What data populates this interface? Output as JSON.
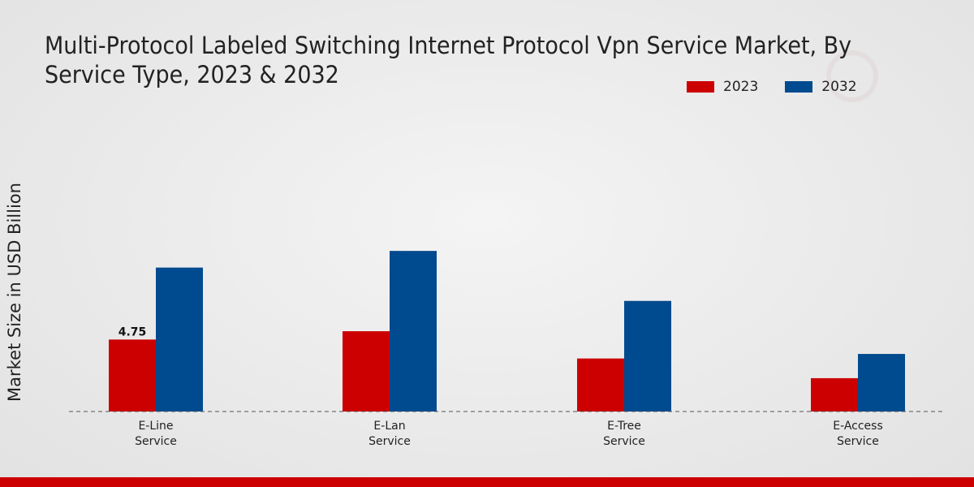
{
  "chart_data": {
    "type": "bar",
    "title_lines": [
      "Multi-Protocol Labeled Switching Internet Protocol Vpn Service Market, By",
      "Service Type, 2023 & 2032"
    ],
    "ylabel": "Market Size in USD Billion",
    "xlabel": "",
    "categories": [
      [
        "E-Line",
        "Service"
      ],
      [
        "E-Lan",
        "Service"
      ],
      [
        "E-Tree",
        "Service"
      ],
      [
        "E-Access",
        "Service"
      ]
    ],
    "series": [
      {
        "name": "2023",
        "color": "#cc0000",
        "values": [
          4.75,
          5.3,
          3.5,
          2.2
        ]
      },
      {
        "name": "2032",
        "color": "#004a8f",
        "values": [
          9.5,
          10.6,
          7.3,
          3.8
        ]
      }
    ],
    "data_labels": [
      {
        "series": 0,
        "index": 0,
        "text": "4.75"
      }
    ],
    "ylim": [
      0,
      15
    ],
    "grid": false,
    "legend_position": "top-right"
  }
}
